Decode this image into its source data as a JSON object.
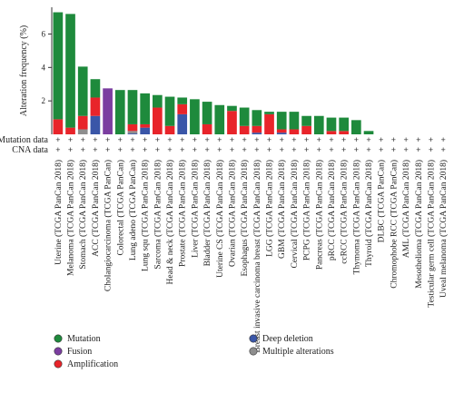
{
  "chart_data": {
    "type": "bar",
    "stacked": true,
    "ylabel": "Alteration frequency (%)",
    "ylim": [
      0,
      7.6
    ],
    "yticks": [
      2,
      4,
      6
    ],
    "row_labels": [
      "Mutation data",
      "CNA data"
    ],
    "row_marker": "+",
    "categories": [
      "Uterine (TCGA PanCan 2018)",
      "Melanoma (TCGA PanCan 2018)",
      "Stomach (TCGA PanCan 2018)",
      "ACC (TCGA PanCan 2018)",
      "Cholangiocarcinoma (TCGA PanCan)",
      "Colorectal (TCGA PanCan)",
      "Lung adeno (TCGA PanCan)",
      "Lung squ (TCGA PanCan 2018)",
      "Sarcoma (TCGA PanCan 2018)",
      "Head & neck (TCGA PanCan 2018)",
      "Prostate (TCGA PanCan 2018)",
      "Liver (TCGA PanCan 2018)",
      "Bladder (TCGA PanCan 2018)",
      "Uterine CS (TCGA PanCan 2018)",
      "Ovarian (TCGA PanCan 2018)",
      "Esophagus (TCGA PanCan 2018)",
      "Breast invasive carcinoma breast (TCGA PanCan 2018)",
      "LGG (TCGA PanCan 2018)",
      "GBM (TCGA PanCan 2018)",
      "Cervical (TCGA PanCan 2018)",
      "PCPG (TCGA PanCan 2018)",
      "Pancreas (TCGA PanCan 2018)",
      "pRCC (TCGA PanCan 2018)",
      "ccRCC (TCGA PanCan 2018)",
      "Thymoma (TCGA PanCan 2018)",
      "Thyroid (TCGA PanCan 2018)",
      "DLBC (TCGA PanCan)",
      "Chromophobe RCC (TCGA PanCan)",
      "AML (TCGA PanCan 2018)",
      "Mesothelioma (TCGA PanCan 2018)",
      "Testicular germ cell (TCGA PanCan 2018)",
      "Uveal melanoma (TCGA PanCan 2018)"
    ],
    "series": [
      {
        "name": "Deep deletion",
        "color": "#3a56a8",
        "values": [
          0,
          0,
          0,
          1.1,
          0,
          0,
          0.05,
          0.4,
          0,
          0,
          1.2,
          0,
          0,
          0,
          0,
          0,
          0.1,
          0,
          0.1,
          0,
          0,
          0,
          0,
          0,
          0,
          0,
          0,
          0,
          0,
          0,
          0,
          0
        ]
      },
      {
        "name": "Multiple alterations",
        "color": "#8e8e8e",
        "values": [
          0,
          0,
          0.3,
          0,
          0,
          0,
          0.15,
          0,
          0,
          0,
          0,
          0,
          0,
          0,
          0,
          0,
          0,
          0,
          0,
          0,
          0,
          0,
          0,
          0,
          0,
          0,
          0,
          0,
          0,
          0,
          0,
          0
        ]
      },
      {
        "name": "Amplification",
        "color": "#e8242a",
        "values": [
          0.9,
          0.4,
          0.8,
          1.1,
          0,
          0,
          0.4,
          0.2,
          1.6,
          0.5,
          0.6,
          0,
          0.6,
          0,
          1.4,
          0.5,
          0.4,
          1.2,
          0.2,
          0.3,
          0.5,
          0,
          0.2,
          0.2,
          0,
          0,
          0,
          0,
          0,
          0,
          0,
          0
        ]
      },
      {
        "name": "Fusion",
        "color": "#7b3ea0",
        "values": [
          0,
          0,
          0,
          0,
          2.75,
          0,
          0,
          0,
          0,
          0,
          0,
          0,
          0,
          0,
          0,
          0,
          0,
          0,
          0,
          0,
          0,
          0,
          0,
          0,
          0,
          0,
          0,
          0,
          0,
          0,
          0,
          0
        ]
      },
      {
        "name": "Mutation",
        "color": "#1e8a3c",
        "values": [
          6.4,
          6.8,
          2.95,
          1.1,
          0,
          2.65,
          2.05,
          1.85,
          0.75,
          1.75,
          0.4,
          2.1,
          1.35,
          1.75,
          0.3,
          1.1,
          0.95,
          0.15,
          1.05,
          1.05,
          0.6,
          1.1,
          0.8,
          0.8,
          0.85,
          0.2,
          0,
          0,
          0,
          0,
          0,
          0
        ]
      }
    ],
    "legend": {
      "placement": "bottom",
      "items": [
        {
          "label": "Mutation",
          "color": "#1e8a3c"
        },
        {
          "label": "Deep deletion",
          "color": "#3a56a8"
        },
        {
          "label": "Fusion",
          "color": "#7b3ea0"
        },
        {
          "label": "Multiple alterations",
          "color": "#8e8e8e"
        },
        {
          "label": "Amplification",
          "color": "#e8242a"
        }
      ]
    }
  }
}
